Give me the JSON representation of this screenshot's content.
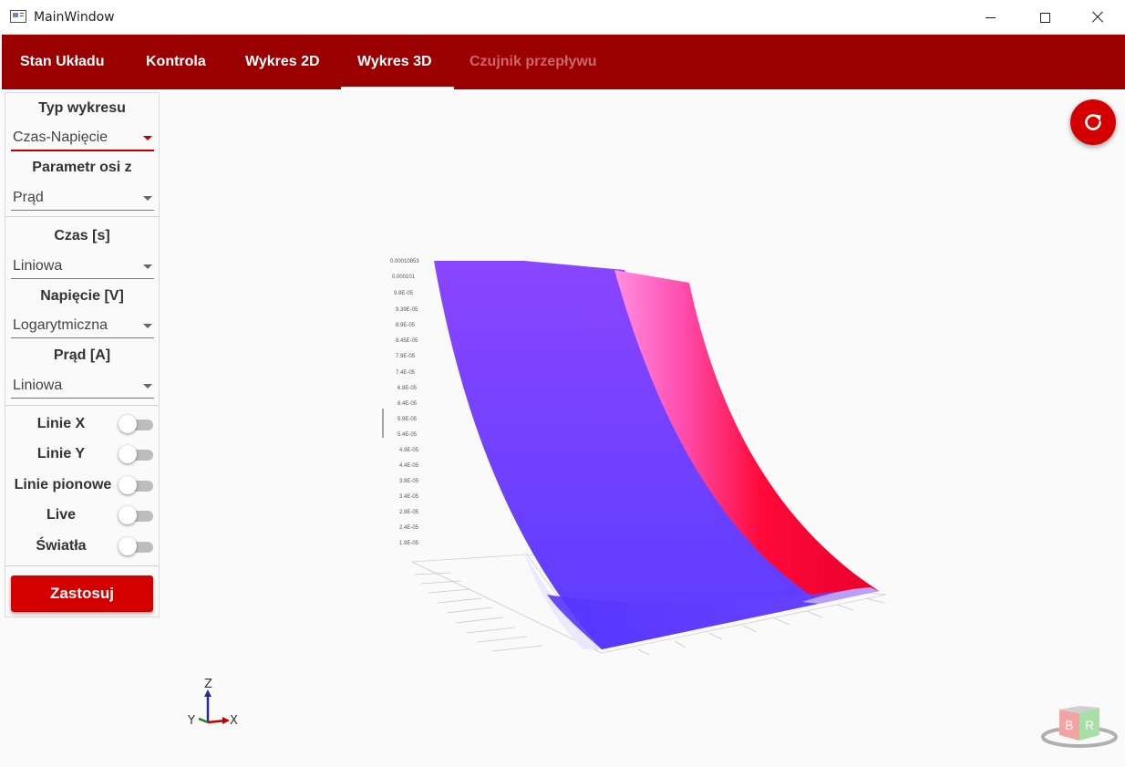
{
  "window": {
    "title": "MainWindow"
  },
  "tabs": [
    {
      "label": "Stan Układu",
      "active": false,
      "disabled": false
    },
    {
      "label": "Kontrola",
      "active": false,
      "disabled": false
    },
    {
      "label": "Wykres 2D",
      "active": false,
      "disabled": false
    },
    {
      "label": "Wykres 3D",
      "active": true,
      "disabled": false
    },
    {
      "label": "Czujnik przepływu",
      "active": false,
      "disabled": true
    }
  ],
  "sidebar": {
    "chart_type": {
      "label": "Typ wykresu",
      "value": "Czas-Napięcie"
    },
    "z_param": {
      "label": "Parametr osi z",
      "value": "Prąd"
    },
    "time_axis": {
      "label": "Czas [s]",
      "value": "Liniowa"
    },
    "voltage_axis": {
      "label": "Napięcie [V]",
      "value": "Logarytmiczna"
    },
    "current_axis": {
      "label": "Prąd [A]",
      "value": "Liniowa"
    },
    "toggles": [
      {
        "label": "Linie X",
        "on": false
      },
      {
        "label": "Linie Y",
        "on": false
      },
      {
        "label": "Linie pionowe",
        "on": false
      },
      {
        "label": "Live",
        "on": false
      },
      {
        "label": "Światła",
        "on": false
      }
    ],
    "apply_label": "Zastosuj"
  },
  "axis_indicator": {
    "z": "Z",
    "y": "Y",
    "x": "X"
  },
  "viewcube": {
    "left_face": "B",
    "right_face": "R"
  },
  "colors": {
    "navbar": "#9b0000",
    "accent": "#d40000",
    "surface_low": "#5a3cff",
    "surface_high": "#8a45ff",
    "surface_edge": "#ff0a3a",
    "surface_highlight": "#ff8fe0"
  },
  "icons": {
    "refresh": "refresh-icon"
  }
}
